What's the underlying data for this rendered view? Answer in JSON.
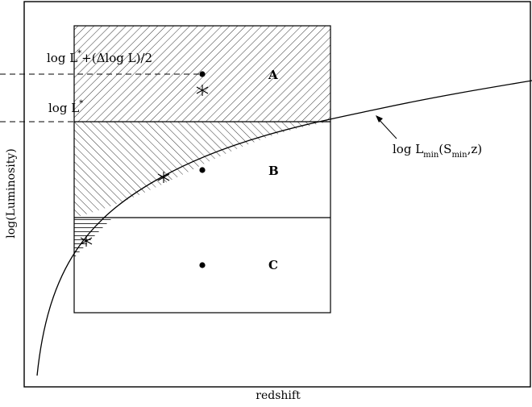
{
  "axes": {
    "x_label": "redshift",
    "y_label": "log(Luminosity)"
  },
  "labels": {
    "upper_level": {
      "base": "log L",
      "sup": "*",
      "rest": "+(Δlog L)/2"
    },
    "level": {
      "base": "log L",
      "sup": "*"
    },
    "curve": {
      "base": "log L",
      "sub1": "min",
      "mid": "(S",
      "sub2": "min",
      "end": ",z)"
    }
  },
  "regions": [
    {
      "name": "A"
    },
    {
      "name": "B"
    },
    {
      "name": "C"
    }
  ],
  "colors": {
    "ink": "#000000",
    "background": "#ffffff"
  }
}
